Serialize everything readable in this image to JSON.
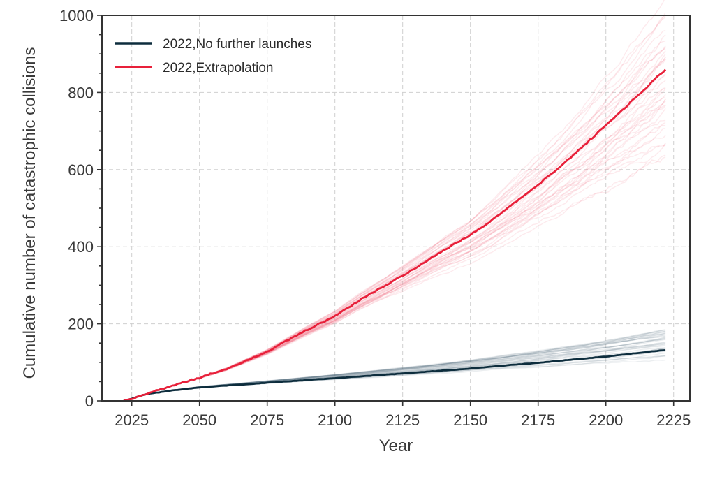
{
  "chart_data": {
    "type": "line",
    "title": "",
    "xlabel": "Year",
    "ylabel": "Cumulative number of catastrophic collisions",
    "xlim": [
      2014,
      2231
    ],
    "ylim": [
      0,
      1000
    ],
    "xticks": [
      2025,
      2050,
      2075,
      2100,
      2125,
      2150,
      2175,
      2200,
      2225
    ],
    "yticks": [
      0,
      200,
      400,
      600,
      800,
      1000
    ],
    "grid": true,
    "legend_position": "top-left",
    "series": [
      {
        "name": "2022,No further launches",
        "color": "#0d2d3d",
        "band_color": "#5e7684",
        "x": [
          2022,
          2025,
          2030,
          2040,
          2050,
          2075,
          2100,
          2125,
          2150,
          2175,
          2200,
          2222
        ],
        "values": [
          0,
          6,
          17,
          27,
          35,
          47,
          59,
          71,
          84,
          99,
          115,
          132
        ],
        "ensemble_range_at_end": [
          105,
          195
        ]
      },
      {
        "name": "2022,Extrapolation",
        "color": "#e8203a",
        "band_color": "#f07b8d",
        "x": [
          2022,
          2025,
          2030,
          2040,
          2050,
          2060,
          2075,
          2090,
          2100,
          2110,
          2125,
          2140,
          2150,
          2160,
          2175,
          2190,
          2200,
          2210,
          2222
        ],
        "values": [
          0,
          6,
          17,
          40,
          60,
          83,
          128,
          185,
          220,
          265,
          325,
          390,
          430,
          480,
          560,
          650,
          715,
          780,
          860
        ],
        "ensemble_range_at_end": [
          680,
          980
        ]
      }
    ]
  }
}
